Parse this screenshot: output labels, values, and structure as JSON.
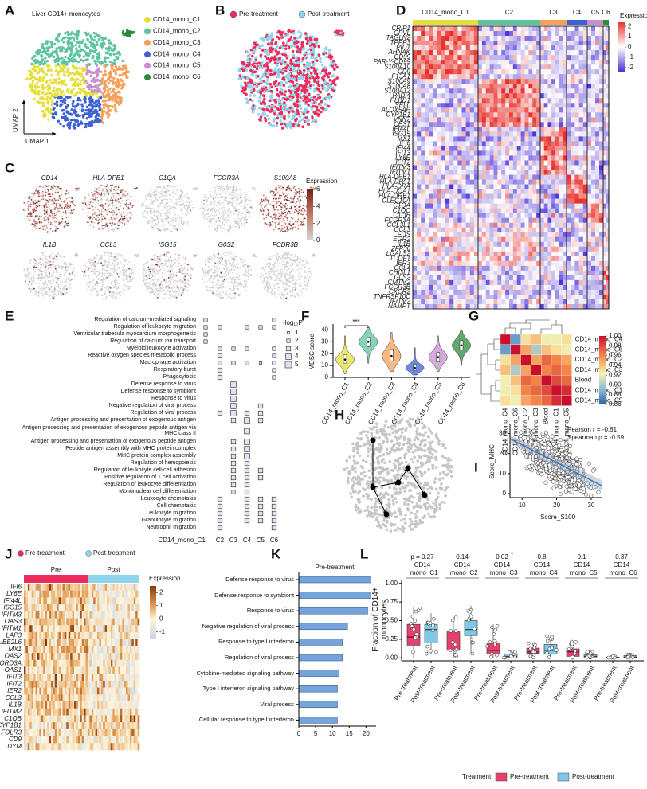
{
  "letters": [
    "A",
    "B",
    "C",
    "D",
    "E",
    "F",
    "G",
    "H",
    "I",
    "J",
    "K",
    "L"
  ],
  "A": {
    "title": "Liver CD14+ monocytes",
    "xlabel": "UMAP 1",
    "ylabel": "UMAP 2",
    "clusters": [
      {
        "name": "CD14_mono_C1",
        "color": "#e5df3c"
      },
      {
        "name": "CD14_mono_C2",
        "color": "#5ec49e"
      },
      {
        "name": "CD14_mono_C3",
        "color": "#f5a05a"
      },
      {
        "name": "CD14_mono_C4",
        "color": "#3d62d4"
      },
      {
        "name": "CD14_mono_C5",
        "color": "#c78fd0"
      },
      {
        "name": "CD14_mono_C6",
        "color": "#2e8b3c"
      }
    ]
  },
  "B": {
    "groups": [
      {
        "name": "Pre-treatment",
        "color": "#ec2d5c"
      },
      {
        "name": "Post-treatment",
        "color": "#8fd3ec"
      }
    ]
  },
  "C": {
    "genes": [
      "CD14",
      "HLA-DPB1",
      "C1QA",
      "FCGR3A",
      "S100A8",
      "IL1B",
      "CCL3",
      "ISG15",
      "G0S2",
      "FCDR3B"
    ],
    "legend_title": "Expression",
    "ticks": [
      0,
      2,
      4,
      6
    ],
    "lim": [
      0,
      6
    ]
  },
  "D": {
    "columns": [
      "CD14_mono_C1",
      "C2",
      "C3",
      "C4",
      "C5",
      "C6"
    ],
    "genes": [
      "CRIP1",
      "CPVL",
      "TAGLN2",
      "TPPP3",
      "PID1",
      "AHNAK",
      "CD99",
      "PAR-Y-CD99",
      "S100A10",
      "CD9",
      "F13A1",
      "S100A9",
      "S100A8",
      "S100A12",
      "PADI4",
      "PLBD1",
      "SELL",
      "ALOX5AP",
      "CYP1B1",
      "VNN2",
      "CES1",
      "IFI44L",
      "ISG15",
      "MX1",
      "IFI6",
      "IFI44",
      "IFIT3",
      "LY6E",
      "IFIT2",
      "IFITM3",
      "IFITM1",
      "HLA-DPB1",
      "HLA-DPA1",
      "HLA-DRA",
      "HLA-DQA1",
      "HLA-DRB1",
      "CLEC10A",
      "C1QA",
      "C1QC",
      "C1QB",
      "FCGR3A",
      "CCL3L1",
      "CCL3",
      "FOS",
      "EGR2",
      "IL1B",
      "ZFP36",
      "LGALS2",
      "TCOF1",
      "IER3",
      "CCL4",
      "CHI3L1",
      "G0S2",
      "CMTM2",
      "FCGR3B",
      "CXCR2",
      "TNFRSF10C",
      "IFITM2",
      "NAMPT"
    ],
    "legend_title": "Expression",
    "ticks": [
      2,
      1,
      0,
      -1,
      -2
    ],
    "lim": [
      -2.4,
      2.4
    ]
  },
  "E": {
    "terms": [
      "Regulation of calcium-mediated signaling",
      "Regulation of leukocyte migration",
      "Ventricular trabecula myocardium morphogenesis",
      "Regulation of calcium ion transport",
      "Myeloid leukocyte activation",
      "Reactive oxygen species metabolic process",
      "Macrophage activation",
      "Respiratory burst",
      "Phagocytosis",
      "Defense response to virus",
      "Defense response to symbiont",
      "Response to virus",
      "Negative regulation of viral process",
      "Regulation of viral process",
      "Antigen processing and presentation of exogenous antigen",
      "Antigen processing and presentation of exogenous peptide antigen via MHC class II",
      "Antigen processing and presentation of exogenous peptide antigen",
      "Peptide antigen assembly with MHC protein complex",
      "MHC protein complex assembly",
      "Regulation of hemopoiesis",
      "Regulation of leukocyte cell-cell adhesion",
      "Positive regulation of T cell activation",
      "Regulation of leukocyte differentiation",
      "Mononuclear cell differentiation",
      "Leukocyte chemotaxis",
      "Cell chemotaxis",
      "Leukocyte migration",
      "Granulocyte migration",
      "Neutrophil migration"
    ],
    "columns": [
      "CD14_mono_C1",
      "C2",
      "C3",
      "C4",
      "C5",
      "C6"
    ],
    "sizes": [
      [
        2,
        null,
        null,
        null,
        null,
        2
      ],
      [
        2,
        2,
        null,
        2,
        2,
        2
      ],
      [
        2,
        null,
        null,
        null,
        null,
        null
      ],
      [
        2,
        null,
        null,
        null,
        null,
        null
      ],
      [
        null,
        2,
        2,
        2,
        null,
        2
      ],
      [
        null,
        3,
        null,
        null,
        null,
        2
      ],
      [
        null,
        2,
        2,
        2,
        1,
        2
      ],
      [
        null,
        3,
        null,
        null,
        null,
        2
      ],
      [
        null,
        3,
        null,
        null,
        null,
        2
      ],
      [
        null,
        null,
        4,
        null,
        null,
        null
      ],
      [
        null,
        null,
        4,
        null,
        null,
        null
      ],
      [
        null,
        null,
        4,
        null,
        null,
        null
      ],
      [
        null,
        null,
        4,
        null,
        3,
        null
      ],
      [
        null,
        3,
        4,
        3,
        3,
        null
      ],
      [
        null,
        null,
        3,
        4,
        3,
        null
      ],
      [
        null,
        null,
        null,
        4,
        null,
        null
      ],
      [
        null,
        null,
        3,
        4,
        null,
        null
      ],
      [
        null,
        null,
        3,
        4,
        null,
        null
      ],
      [
        null,
        null,
        3,
        4,
        null,
        null
      ],
      [
        null,
        null,
        3,
        3,
        null,
        null
      ],
      [
        null,
        null,
        3,
        3,
        3,
        null
      ],
      [
        null,
        null,
        3,
        3,
        3,
        null
      ],
      [
        null,
        null,
        3,
        3,
        null,
        null
      ],
      [
        null,
        null,
        2,
        3,
        null,
        null
      ],
      [
        null,
        3,
        null,
        3,
        3,
        3
      ],
      [
        null,
        3,
        null,
        3,
        3,
        3
      ],
      [
        null,
        3,
        null,
        3,
        3,
        3
      ],
      [
        null,
        3,
        null,
        3,
        3,
        3
      ],
      [
        null,
        3,
        null,
        null,
        null,
        3
      ]
    ],
    "legend_title": "-log₁₀P",
    "legend_sizes": [
      1,
      2,
      3,
      4,
      5
    ]
  },
  "F": {
    "type": "violin",
    "ylabel": "MDSC score",
    "annotation": "***",
    "categories": [
      "CD14_mono_C1",
      "CD14_mono_C2",
      "CD14_mono_C3",
      "CD14_mono_C4",
      "CD14_mono_C5",
      "CD14_mono_C6"
    ],
    "colors": [
      "#e5df3c",
      "#5ec49e",
      "#f5a05a",
      "#3d62d4",
      "#c78fd0",
      "#2e8b3c"
    ],
    "stats": [
      [
        3,
        12,
        15,
        19,
        35
      ],
      [
        12,
        26,
        30,
        34,
        42
      ],
      [
        5,
        14,
        18,
        24,
        38
      ],
      [
        2,
        6,
        8,
        11,
        25
      ],
      [
        5,
        13,
        17,
        21,
        35
      ],
      [
        10,
        23,
        27,
        31,
        40
      ]
    ],
    "ylim": [
      0,
      45
    ],
    "yticks": [
      0,
      10,
      20,
      30,
      40
    ]
  },
  "G": {
    "type": "heatmap",
    "labels": [
      "CD14_mono_C4",
      "CD14_mono_C6",
      "CD14_mono_C2",
      "CD14_mono_C3",
      "Blood",
      "CD14_mono_C1",
      "CD14_mono_C5"
    ],
    "matrix": [
      [
        1,
        0.88,
        0.93,
        0.94,
        0.92,
        0.92,
        0.93
      ],
      [
        0.88,
        1,
        0.95,
        0.9,
        0.94,
        0.93,
        0.92
      ],
      [
        0.93,
        0.95,
        1,
        0.95,
        0.97,
        0.96,
        0.95
      ],
      [
        0.94,
        0.9,
        0.95,
        1,
        0.96,
        0.97,
        0.96
      ],
      [
        0.92,
        0.94,
        0.97,
        0.96,
        1,
        0.98,
        0.97
      ],
      [
        0.92,
        0.93,
        0.96,
        0.97,
        0.98,
        1,
        0.99
      ],
      [
        0.93,
        0.92,
        0.95,
        0.96,
        0.97,
        0.99,
        1
      ]
    ],
    "lim": [
      0.86,
      1
    ],
    "ticks": [
      {
        "value": 1,
        "label": "1.00"
      },
      0.98,
      0.96,
      0.94,
      0.92,
      {
        "value": 0.9,
        "label": "0.90"
      },
      0.88,
      0.86
    ]
  },
  "I": {
    "type": "scatter",
    "xlabel": "Score_S100",
    "ylabel": "Score_MHC",
    "xlim": [
      6.5,
      33
    ],
    "ylim": [
      -2,
      35
    ],
    "xticks": [
      10,
      20,
      30
    ],
    "yticks": [
      0,
      10,
      20,
      30
    ],
    "annotations": [
      "Pearson r = -0.61",
      "Spearman ρ = -0.59"
    ]
  },
  "J": {
    "legend": [
      {
        "name": "Pre-treatment",
        "color": "#ec2d5c"
      },
      {
        "name": "Post-treatment",
        "color": "#8fd3ec"
      }
    ],
    "headers": [
      "Pre",
      "Post"
    ],
    "genes": [
      "IFI6",
      "LY6E",
      "IFI44L",
      "ISG15",
      "IFITM3",
      "OAS3",
      "IFITM1",
      "LAP3",
      "UBE2L6",
      "MX1",
      "OAS2",
      "SNORD3A",
      "OAS1",
      "IFIT3",
      "IFIT2",
      "IER2",
      "CCL3",
      "IL1B",
      "IFITM2",
      "C1QB",
      "CYP1B1",
      "FOLR3",
      "CD9",
      "DYM"
    ],
    "legend_title": "Expression",
    "ticks": [
      2,
      1,
      0,
      -1
    ],
    "lim": [
      -1.5,
      2.5
    ]
  },
  "K": {
    "type": "bar",
    "title": "Pre-treatment",
    "color": "#74a4db",
    "categories": [
      "Defense response to virus",
      "Defense response to symbiont",
      "Response to virus",
      "Negative regulation of viral process",
      "Response to type I interferon",
      "Regulation of viral process",
      "Cytokine-mediated signaling pathway",
      "Type I interferon signaling pathway",
      "Viral process",
      "Cellular response to type I interferon"
    ],
    "values": [
      21.5,
      21.5,
      20.5,
      14.5,
      13,
      13,
      12,
      11.5,
      11.5,
      11.5
    ],
    "xlim": [
      0,
      23
    ],
    "xticks": [
      0,
      5,
      10,
      15,
      20
    ]
  },
  "L": {
    "type": "box",
    "ylabel": "Fraction of CD14+ monocytes",
    "ylim": [
      -0.04,
      1.04
    ],
    "yticks": [
      {
        "value": 0,
        "label": "0.00"
      },
      {
        "value": 0.25,
        "label": "0.25"
      },
      {
        "value": 0.5,
        "label": "0.50"
      },
      {
        "value": 0.75,
        "label": "0.75"
      },
      {
        "value": 1,
        "label": "1.00"
      }
    ],
    "colors": [
      "#e8406e",
      "#7ec8e8"
    ],
    "legend_title": "Treatment",
    "legend": [
      "Pre-treatment",
      "Post-treatment"
    ],
    "groups": [
      {
        "label": [
          "CD14",
          "_mono_C1"
        ],
        "p": "p = 0.27",
        "boxes": [
          {
            "x_label": "Pre-treatment",
            "stats": [
              0,
              0.17,
              0.28,
              0.45,
              0.68
            ]
          },
          {
            "x_label": "Post-treatment",
            "stats": [
              0.05,
              0.2,
              0.38,
              0.45,
              0.6
            ]
          }
        ]
      },
      {
        "label": [
          "CD14",
          "_mono_C2"
        ],
        "p": "0.14",
        "boxes": [
          {
            "x_label": "Pre-treatment",
            "stats": [
              0,
              0.1,
              0.2,
              0.35,
              0.55
            ]
          },
          {
            "x_label": "Post-treatment",
            "stats": [
              0.05,
              0.3,
              0.38,
              0.5,
              0.7
            ]
          }
        ]
      },
      {
        "label": [
          "CD14",
          "_mono_C3"
        ],
        "p": "0.02",
        "mark": "*",
        "boxes": [
          {
            "x_label": "Pre-treatment",
            "stats": [
              0,
              0.05,
              0.1,
              0.2,
              0.45
            ]
          },
          {
            "x_label": "Post-treatment",
            "stats": [
              0,
              0.01,
              0.02,
              0.05,
              0.1
            ]
          }
        ]
      },
      {
        "label": [
          "CD14",
          "_mono_C4"
        ],
        "p": "0.8",
        "boxes": [
          {
            "x_label": "Pre-treatment",
            "stats": [
              0,
              0.06,
              0.08,
              0.13,
              0.2
            ]
          },
          {
            "x_label": "Post-treatment",
            "stats": [
              0,
              0.05,
              0.1,
              0.18,
              0.3
            ]
          }
        ]
      },
      {
        "label": [
          "CD14",
          "_mono_C5"
        ],
        "p": "0.1",
        "boxes": [
          {
            "x_label": "Pre-treatment",
            "stats": [
              0,
              0.02,
              0.08,
              0.12,
              0.22
            ]
          },
          {
            "x_label": "Post-treatment",
            "stats": [
              0,
              0,
              0.02,
              0.04,
              0.08
            ]
          }
        ]
      },
      {
        "label": [
          "CD14",
          "_mono_C6"
        ],
        "p": "0.37",
        "boxes": [
          {
            "x_label": "Pre-treatment",
            "stats": [
              0,
              0,
              0,
              0.01,
              0.02
            ]
          },
          {
            "x_label": "Post-treatment",
            "stats": [
              0,
              0,
              0.01,
              0.03,
              0.05
            ]
          }
        ]
      }
    ]
  }
}
